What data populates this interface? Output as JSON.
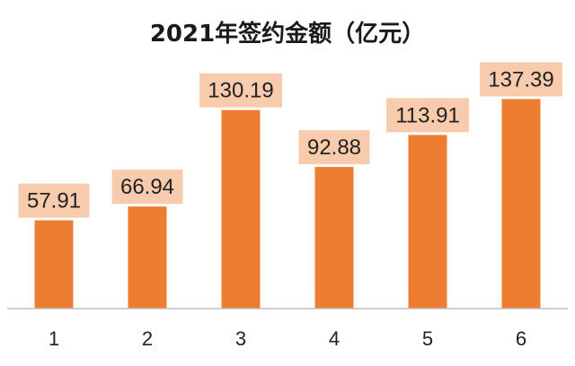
{
  "chart_data": {
    "type": "bar",
    "title": "2021年签约金额（亿元）",
    "categories": [
      "1",
      "2",
      "3",
      "4",
      "5",
      "6"
    ],
    "values": [
      57.91,
      66.94,
      130.19,
      92.88,
      113.91,
      137.39
    ],
    "data_labels": [
      "57.91",
      "66.94",
      "130.19",
      "92.88",
      "113.91",
      "137.39"
    ],
    "xlabel": "",
    "ylabel": "",
    "ylim": [
      0,
      160
    ],
    "grid": false,
    "legend": "none",
    "colors": {
      "bar": "#ED7D31",
      "label_background": "#F8CBAD"
    }
  }
}
